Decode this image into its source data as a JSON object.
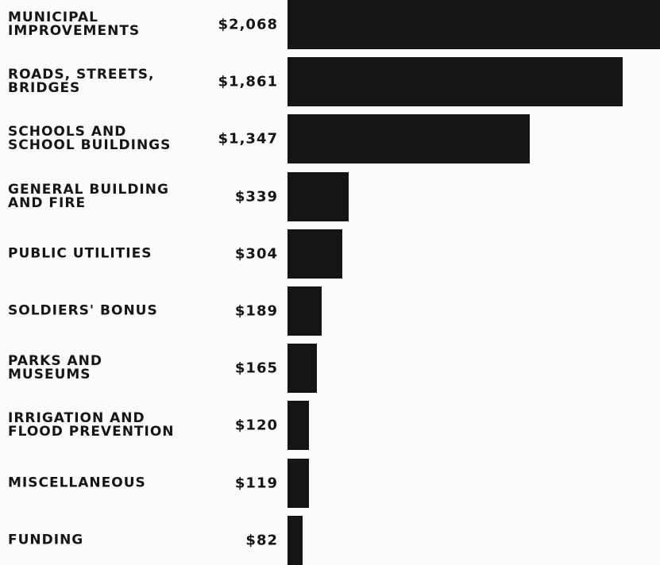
{
  "chart_data": {
    "type": "bar",
    "categories": [
      "MUNICIPAL\nIMPROVEMENTS",
      "ROADS, STREETS,\nBRIDGES",
      "SCHOOLS AND\nSCHOOL BUILDINGS",
      "GENERAL BUILDING\nAND FIRE",
      "PUBLIC UTILITIES",
      "SOLDIERS' BONUS",
      "PARKS AND\nMUSEUMS",
      "IRRIGATION AND\nFLOOD PREVENTION",
      "MISCELLANEOUS",
      "FUNDING"
    ],
    "values": [
      2068,
      1861,
      1347,
      339,
      304,
      189,
      165,
      120,
      119,
      82
    ],
    "value_labels": [
      "$2,068",
      "$1,861",
      "$1,347",
      "$339",
      "$304",
      "$189",
      "$165",
      "$120",
      "$119",
      "$82"
    ],
    "color": "#151515"
  }
}
